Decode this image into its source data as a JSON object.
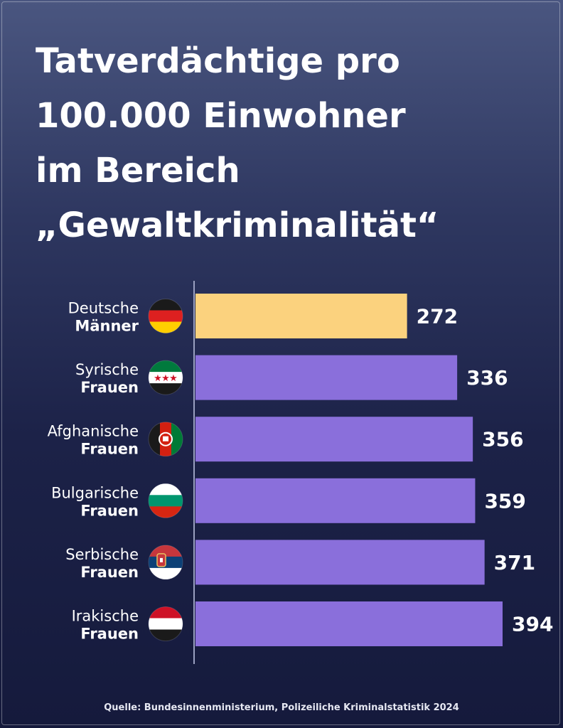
{
  "title_lines": [
    "Tatverdächtige pro",
    "100.000 Einwohner",
    "im Bereich",
    "„Gewaltkriminalität“"
  ],
  "source": "Quelle: Bundesinnenministerium, Polizeiliche Kriminalstatistik 2024",
  "colors": {
    "highlight_bar": "#fbd27e",
    "default_bar": "#8a6fdb",
    "axis_line": "#9aa0c0"
  },
  "chart_data": {
    "type": "bar",
    "orientation": "horizontal",
    "categories": [
      {
        "line1": "Deutsche",
        "line2": "Männer",
        "flag": "germany-flag-icon"
      },
      {
        "line1": "Syrische",
        "line2": "Frauen",
        "flag": "syria-flag-icon"
      },
      {
        "line1": "Afghanische",
        "line2": "Frauen",
        "flag": "afghanistan-flag-icon"
      },
      {
        "line1": "Bulgarische",
        "line2": "Frauen",
        "flag": "bulgaria-flag-icon"
      },
      {
        "line1": "Serbische",
        "line2": "Frauen",
        "flag": "serbia-flag-icon"
      },
      {
        "line1": "Irakische",
        "line2": "Frauen",
        "flag": "iraq-flag-icon"
      }
    ],
    "values": [
      272,
      336,
      356,
      359,
      371,
      394
    ],
    "value_labels": [
      "272",
      "336",
      "356",
      "359",
      "371",
      "394"
    ],
    "highlight_index": 0,
    "xlim": [
      0,
      394
    ],
    "grid": false,
    "legend": "none"
  }
}
